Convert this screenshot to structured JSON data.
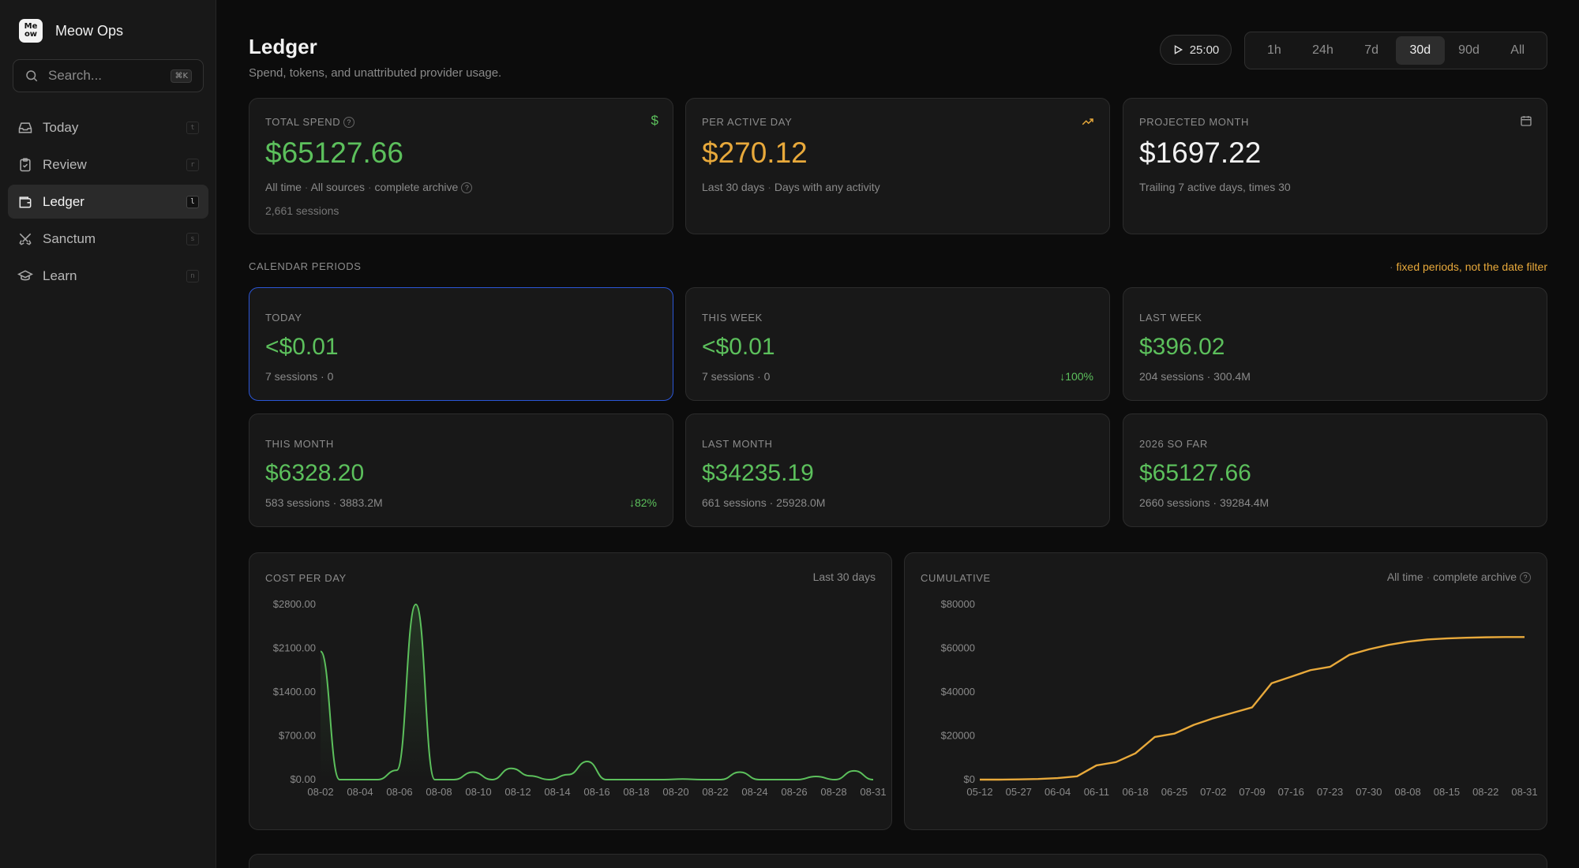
{
  "app": {
    "name": "Meow Ops",
    "logo_text": "Meow"
  },
  "search": {
    "placeholder": "Search...",
    "shortcut": "⌘K"
  },
  "sidebar": {
    "items": [
      {
        "label": "Today",
        "icon": "inbox-icon",
        "hint": "t",
        "active": false
      },
      {
        "label": "Review",
        "icon": "clipboard-icon",
        "hint": "r",
        "active": false
      },
      {
        "label": "Ledger",
        "icon": "wallet-icon",
        "hint": "l",
        "active": true
      },
      {
        "label": "Sanctum",
        "icon": "swords-icon",
        "hint": "s",
        "active": false
      },
      {
        "label": "Learn",
        "icon": "graduation-cap-icon",
        "hint": "n",
        "active": false
      }
    ]
  },
  "header": {
    "title": "Ledger",
    "subtitle": "Spend, tokens, and unattributed provider usage.",
    "timer": "25:00",
    "ranges": [
      "1h",
      "24h",
      "7d",
      "30d",
      "90d",
      "All"
    ],
    "active_range": "30d"
  },
  "summary": {
    "total_spend": {
      "label": "TOTAL SPEND",
      "value": "$65127.66",
      "tags": [
        "All time",
        "All sources",
        "complete archive"
      ],
      "sessions": "2,661 sessions",
      "icon": "dollar-icon"
    },
    "per_active_day": {
      "label": "PER ACTIVE DAY",
      "value": "$270.12",
      "tags": [
        "Last 30 days",
        "Days with any activity"
      ],
      "icon": "trending-up-icon"
    },
    "projected_month": {
      "label": "PROJECTED MONTH",
      "value": "$1697.22",
      "note": "Trailing 7 active days, times 30",
      "icon": "calendar-icon"
    }
  },
  "periods": {
    "section_label": "CALENDAR PERIODS",
    "note": "fixed periods, not the date filter",
    "items": [
      {
        "label": "TODAY",
        "value": "<$0.01",
        "meta": "7 sessions · 0",
        "delta": ""
      },
      {
        "label": "THIS WEEK",
        "value": "<$0.01",
        "meta": "7 sessions · 0",
        "delta": "↓100%"
      },
      {
        "label": "LAST WEEK",
        "value": "$396.02",
        "meta": "204 sessions · 300.4M",
        "delta": ""
      },
      {
        "label": "THIS MONTH",
        "value": "$6328.20",
        "meta": "583 sessions · 3883.2M",
        "delta": "↓82%"
      },
      {
        "label": "LAST MONTH",
        "value": "$34235.19",
        "meta": "661 sessions · 25928.0M",
        "delta": ""
      },
      {
        "label": "2026 SO FAR",
        "value": "$65127.66",
        "meta": "2660 sessions · 39284.4M",
        "delta": ""
      }
    ]
  },
  "colors": {
    "green": "#5cc05c",
    "amber": "#e8a93b",
    "selected_border": "#2b56d6"
  },
  "chart_data": [
    {
      "type": "area",
      "title": "COST PER DAY",
      "range_label": "Last 30 days",
      "y_ticks": [
        "$0.00",
        "$700.00",
        "$1400.00",
        "$2100.00",
        "$2800.00"
      ],
      "ylim": [
        0,
        2800
      ],
      "x_ticks": [
        "08-02",
        "08-04",
        "08-06",
        "08-08",
        "08-10",
        "08-12",
        "08-14",
        "08-16",
        "08-18",
        "08-20",
        "08-22",
        "08-24",
        "08-26",
        "08-28",
        "08-31"
      ],
      "x": [
        "08-02",
        "08-03",
        "08-04",
        "08-05",
        "08-06",
        "08-07",
        "08-08",
        "08-09",
        "08-10",
        "08-11",
        "08-12",
        "08-13",
        "08-14",
        "08-15",
        "08-16",
        "08-17",
        "08-18",
        "08-19",
        "08-20",
        "08-21",
        "08-22",
        "08-23",
        "08-24",
        "08-25",
        "08-26",
        "08-27",
        "08-28",
        "08-29",
        "08-30",
        "08-31"
      ],
      "values": [
        2050,
        0,
        0,
        0,
        150,
        2800,
        0,
        0,
        120,
        0,
        180,
        60,
        0,
        80,
        290,
        0,
        0,
        0,
        0,
        10,
        0,
        0,
        120,
        0,
        0,
        0,
        50,
        0,
        140,
        0
      ],
      "color": "#5cc05c"
    },
    {
      "type": "line",
      "title": "CUMULATIVE",
      "range_tags": [
        "All time",
        "complete archive"
      ],
      "y_ticks": [
        "$0",
        "$20000",
        "$40000",
        "$60000",
        "$80000"
      ],
      "ylim": [
        0,
        80000
      ],
      "x_ticks": [
        "05-12",
        "05-27",
        "06-04",
        "06-11",
        "06-18",
        "06-25",
        "07-02",
        "07-09",
        "07-16",
        "07-23",
        "07-30",
        "08-08",
        "08-15",
        "08-22",
        "08-31"
      ],
      "values": [
        0,
        0,
        100,
        300,
        700,
        1500,
        6500,
        8000,
        12000,
        19500,
        21000,
        25000,
        28000,
        30500,
        33000,
        44000,
        47000,
        50000,
        51500,
        57000,
        59500,
        61500,
        63000,
        64000,
        64500,
        64800,
        65000,
        65100,
        65127.66
      ],
      "color": "#e8a93b"
    }
  ]
}
